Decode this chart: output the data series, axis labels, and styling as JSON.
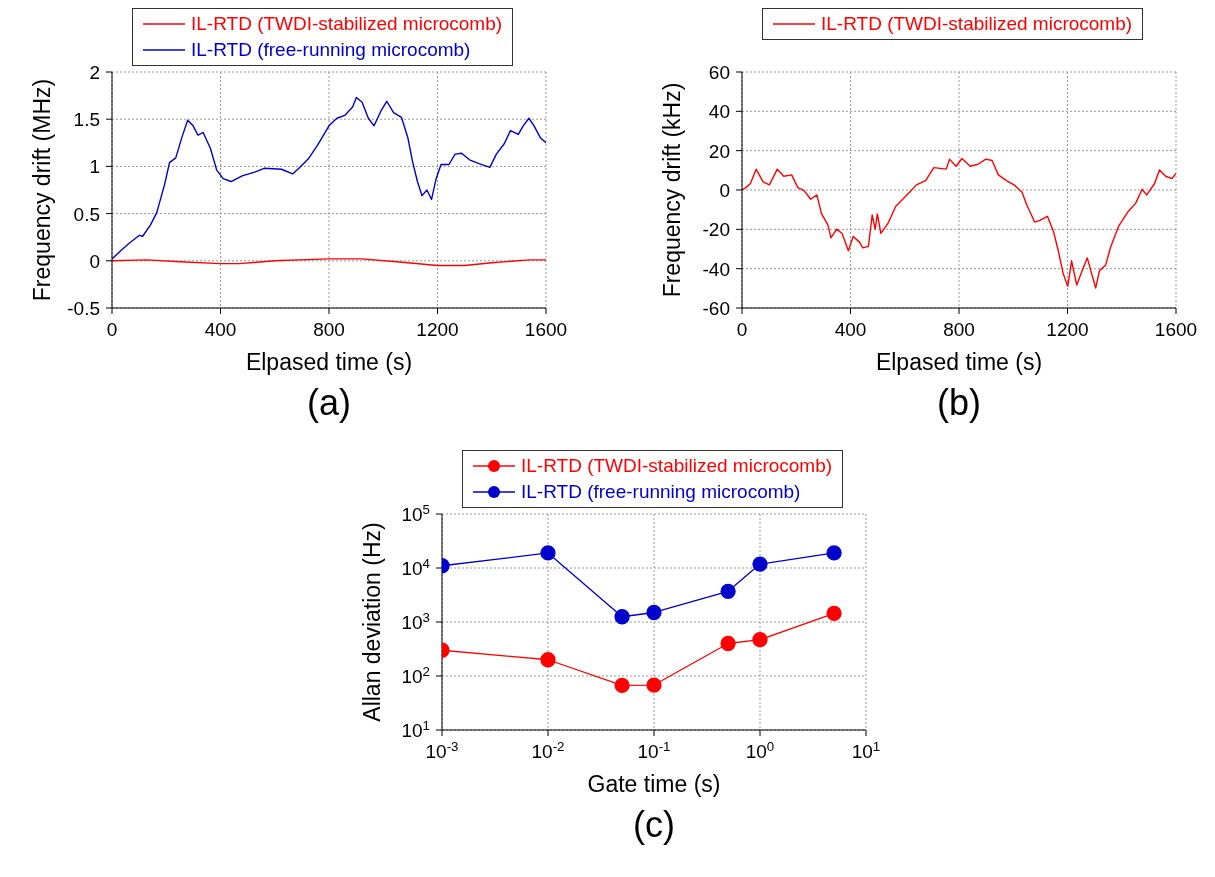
{
  "chart_data": [
    {
      "type": "line",
      "xlabel": "Elpased time (s)",
      "ylabel": "Frequency drift (MHz)",
      "annotations": [
        "(a)"
      ],
      "legend": "top",
      "grid": true,
      "xlim": [
        0,
        1600
      ],
      "xticks": [
        0,
        400,
        800,
        1200,
        1600
      ],
      "ylim": [
        -0.5,
        2
      ],
      "yticks": [
        -0.5,
        0,
        0.5,
        1,
        1.5,
        2
      ],
      "series": [
        {
          "name": "IL-RTD (TWDI-stabilized microcomb)",
          "color": "#ff0000",
          "x": [
            0,
            130,
            250,
            400,
            470,
            600,
            800,
            920,
            1050,
            1200,
            1300,
            1400,
            1540,
            1600
          ],
          "values": [
            0,
            0.01,
            -0.01,
            -0.03,
            -0.03,
            0,
            0.02,
            0.02,
            -0.01,
            -0.05,
            -0.05,
            -0.02,
            0.01,
            0.01
          ]
        },
        {
          "name": "IL-RTD (free-running microcomb)",
          "color": "#0000cd",
          "x": [
            0,
            26,
            61,
            101,
            113,
            142,
            165,
            194,
            212,
            235,
            258,
            279,
            299,
            317,
            336,
            363,
            386,
            410,
            439,
            480,
            526,
            561,
            625,
            666,
            689,
            724,
            759,
            800,
            829,
            858,
            887,
            901,
            922,
            945,
            966,
            992,
            1013,
            1038,
            1067,
            1091,
            1108,
            1126,
            1143,
            1161,
            1178,
            1195,
            1213,
            1242,
            1265,
            1289,
            1318,
            1353,
            1393,
            1417,
            1446,
            1469,
            1498,
            1516,
            1537,
            1556,
            1580,
            1600
          ],
          "values": [
            0.02,
            0.09,
            0.18,
            0.27,
            0.26,
            0.38,
            0.51,
            0.81,
            1.04,
            1.09,
            1.31,
            1.49,
            1.43,
            1.33,
            1.36,
            1.19,
            0.96,
            0.87,
            0.84,
            0.9,
            0.94,
            0.98,
            0.97,
            0.92,
            0.98,
            1.08,
            1.23,
            1.43,
            1.51,
            1.54,
            1.63,
            1.73,
            1.68,
            1.51,
            1.43,
            1.59,
            1.69,
            1.57,
            1.52,
            1.3,
            1.05,
            0.84,
            0.69,
            0.75,
            0.65,
            0.87,
            1.02,
            1.02,
            1.13,
            1.14,
            1.07,
            1.03,
            0.99,
            1.13,
            1.24,
            1.38,
            1.34,
            1.43,
            1.51,
            1.43,
            1.3,
            1.25
          ]
        }
      ]
    },
    {
      "type": "line",
      "xlabel": "Elpased time (s)",
      "ylabel": "Frequency drift (kHz)",
      "annotations": [
        "(b)"
      ],
      "legend": "top",
      "grid": true,
      "xlim": [
        0,
        1600
      ],
      "xticks": [
        0,
        400,
        800,
        1200,
        1600
      ],
      "ylim": [
        -60,
        60
      ],
      "yticks": [
        -60,
        -40,
        -20,
        0,
        20,
        40,
        60
      ],
      "series": [
        {
          "name": "IL-RTD (TWDI-stabilized microcomb)",
          "color": "#ff0000",
          "x": [
            0,
            14,
            31,
            52,
            78,
            101,
            130,
            154,
            183,
            206,
            229,
            253,
            276,
            293,
            317,
            328,
            349,
            369,
            392,
            410,
            433,
            445,
            466,
            480,
            491,
            499,
            512,
            538,
            567,
            608,
            643,
            677,
            707,
            753,
            765,
            789,
            811,
            841,
            870,
            899,
            922,
            945,
            975,
            1003,
            1032,
            1050,
            1079,
            1096,
            1126,
            1149,
            1166,
            1184,
            1201,
            1215,
            1234,
            1254,
            1273,
            1289,
            1304,
            1318,
            1341,
            1358,
            1388,
            1422,
            1451,
            1475,
            1492,
            1521,
            1539,
            1562,
            1585,
            1600
          ],
          "values": [
            0,
            1.2,
            3.3,
            10.6,
            4.1,
            2.6,
            10.6,
            7,
            7.7,
            1.2,
            -0.3,
            -4.7,
            -2.5,
            -12,
            -17.9,
            -24.3,
            -19.9,
            -22.1,
            -30.9,
            -23.6,
            -26.5,
            -29.4,
            -28.7,
            -12.7,
            -19.9,
            -12.2,
            -22.1,
            -17,
            -8.3,
            -2.5,
            2.6,
            4.8,
            11.4,
            10.6,
            15.7,
            12.1,
            16,
            12.1,
            13.1,
            15.7,
            15,
            7.7,
            4.8,
            2.6,
            -1,
            -7.6,
            -16.3,
            -15.6,
            -13.4,
            -21.4,
            -30.9,
            -42.5,
            -49,
            -36,
            -48.3,
            -41,
            -34.5,
            -42.5,
            -49.8,
            -41,
            -38.1,
            -29.4,
            -18.5,
            -11.2,
            -6.8,
            0.4,
            -2.5,
            3.3,
            10.2,
            7,
            5.8,
            8.4
          ]
        }
      ]
    },
    {
      "type": "line",
      "xlabel": "Gate time (s)",
      "ylabel": "Allan deviation (Hz)",
      "annotations": [
        "(c)"
      ],
      "legend": "top",
      "grid": true,
      "log": "xy",
      "marker": "circle",
      "xlim": [
        0.001,
        10
      ],
      "xticks": [
        {
          "value": 0.001,
          "label": "10$^{-3}$"
        },
        {
          "value": 0.01,
          "label": "10$^{-2}$"
        },
        {
          "value": 0.1,
          "label": "10$^{-1}$"
        },
        {
          "value": 1,
          "label": "10$^{0}$"
        },
        {
          "value": 10,
          "label": "10$^{1}$"
        }
      ],
      "ylim": [
        10,
        100000
      ],
      "yticks": [
        {
          "value": 10,
          "label": "10$^{1}$"
        },
        {
          "value": 100,
          "label": "10$^{2}$"
        },
        {
          "value": 1000,
          "label": "10$^{3}$"
        },
        {
          "value": 10000,
          "label": "10$^{4}$"
        },
        {
          "value": 100000,
          "label": "10$^{5}$"
        }
      ],
      "x": [
        0.001,
        0.01,
        0.05,
        0.1,
        0.5,
        1,
        5
      ],
      "series": [
        {
          "name": "IL-RTD (TWDI-stabilized microcomb)",
          "color": "#ff0000",
          "values": [
            300,
            200,
            67,
            68,
            400,
            470,
            1450
          ]
        },
        {
          "name": "IL-RTD (free-running microcomb)",
          "color": "#0000cd",
          "values": [
            11000,
            19000,
            1250,
            1500,
            3700,
            11800,
            19000
          ]
        }
      ]
    }
  ]
}
